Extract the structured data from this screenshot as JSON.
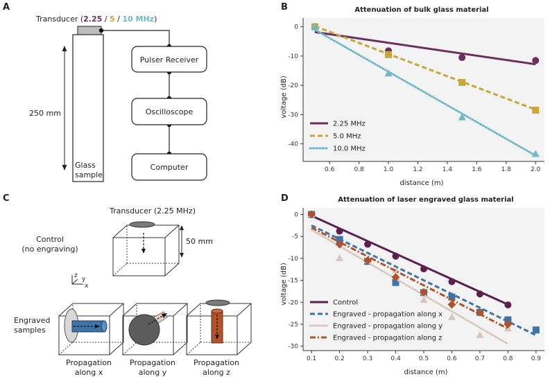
{
  "panels": {
    "a": "A",
    "b": "B",
    "c": "C",
    "d": "D"
  },
  "colors": {
    "c225": "#6b2f5f",
    "c5": "#c9a53a",
    "c10": "#6fb8cc",
    "control": "#5a1f4e",
    "ex": "#3e73a8",
    "ey": "#d9c6bc",
    "ez": "#b2522a"
  },
  "diagram_a": {
    "transducer_prefix": "Transducer (",
    "freq1": "2.25",
    "sep1": " / ",
    "freq2": "5",
    "sep2": " / ",
    "freq3": "10 MHz",
    "transducer_suffix": ")",
    "length": "250 mm",
    "glass1": "Glass",
    "glass2": "sample",
    "pulser": "Pulser Receiver",
    "oscilloscope": "Oscilloscope",
    "computer": "Computer"
  },
  "diagram_c": {
    "transducer": "Transducer (2.25 MHz)",
    "control1": "Control",
    "control2": "(no engraving)",
    "size": "50 mm",
    "axis_z": "z",
    "axis_y": "y",
    "axis_x": "x",
    "engraved1": "Engraved",
    "engraved2": "samples",
    "propagation": "Propagation",
    "along_x": "along x",
    "along_y": "along y",
    "along_z": "along z"
  },
  "chart_data": [
    {
      "type": "scatter",
      "title": "Attenuation of bulk glass material",
      "xlabel": "distance (m)",
      "ylabel": "voltage (dB)",
      "xlim": [
        0.42,
        2.06
      ],
      "ylim": [
        -46,
        3
      ],
      "xticks": [
        0.6,
        0.8,
        1.0,
        1.2,
        1.4,
        1.6,
        1.8,
        2.0
      ],
      "xtick_labels": [
        "0.6",
        "0.8",
        "1.0",
        "1.2",
        "1.4",
        "1.6",
        "1.8",
        "2.0"
      ],
      "yticks": [
        0,
        -10,
        -20,
        -30,
        -40
      ],
      "ytick_labels": [
        "0",
        "-10",
        "-20",
        "-30",
        "-40"
      ],
      "legend_position": "bottom-left",
      "series": [
        {
          "name": "2.25 MHz",
          "marker": "circle",
          "dash": "solid",
          "color": "#6b2f5f",
          "points": {
            "x": [
              0.5,
              1.0,
              1.5,
              2.0
            ],
            "y": [
              0,
              -8.2,
              -10.5,
              -11.5
            ]
          },
          "fit": {
            "x": [
              0.5,
              2.0
            ],
            "y": [
              -1.8,
              -12.8
            ]
          }
        },
        {
          "name": "5.0 MHz",
          "marker": "square",
          "dash": "dashed",
          "color": "#c9a53a",
          "points": {
            "x": [
              0.5,
              1.0,
              1.5,
              2.0
            ],
            "y": [
              0,
              -9.5,
              -19,
              -28.5
            ]
          },
          "fit": {
            "x": [
              0.5,
              2.0
            ],
            "y": [
              0.2,
              -28.3
            ]
          }
        },
        {
          "name": "10.0 MHz",
          "marker": "triangle",
          "dash": "dotted",
          "color": "#6fb8cc",
          "points": {
            "x": [
              0.5,
              1.0,
              1.5,
              2.0
            ],
            "y": [
              0,
              -16,
              -31,
              -43.5
            ]
          },
          "fit": {
            "x": [
              0.5,
              2.0
            ],
            "y": [
              -1,
              -44
            ]
          }
        }
      ]
    },
    {
      "type": "scatter",
      "title": "Attenuation of laser engraved glass material",
      "xlabel": "distance (m)",
      "ylabel": "voltage (dB)",
      "xlim": [
        0.07,
        0.93
      ],
      "ylim": [
        -31,
        1.5
      ],
      "xticks": [
        0.1,
        0.2,
        0.3,
        0.4,
        0.5,
        0.6,
        0.7,
        0.8,
        0.9
      ],
      "xtick_labels": [
        "0.1",
        "0.2",
        "0.3",
        "0.4",
        "0.5",
        "0.6",
        "0.7",
        "0.8",
        "0.9"
      ],
      "yticks": [
        0,
        -5,
        -10,
        -15,
        -20,
        -25,
        -30
      ],
      "ytick_labels": [
        "0",
        "-5",
        "-10",
        "-15",
        "-20",
        "-25",
        "-30"
      ],
      "legend_position": "bottom-left",
      "series": [
        {
          "name": "Control",
          "marker": "circle",
          "dash": "solid",
          "color": "#5a1f4e",
          "points": {
            "x": [
              0.1,
              0.2,
              0.3,
              0.4,
              0.5,
              0.6,
              0.7,
              0.8
            ],
            "y": [
              0,
              -3.8,
              -6.8,
              -9.5,
              -12.4,
              -15.3,
              -18.1,
              -20.6
            ]
          },
          "fit": {
            "x": [
              0.1,
              0.8
            ],
            "y": [
              -0.3,
              -20.5
            ]
          }
        },
        {
          "name": "Engraved - propagation along x",
          "marker": "square",
          "dash": "dashed",
          "color": "#3e73a8",
          "points": {
            "x": [
              0.1,
              0.2,
              0.3,
              0.4,
              0.5,
              0.6,
              0.7,
              0.8,
              0.9
            ],
            "y": [
              0,
              -5.7,
              -10.7,
              -15.5,
              -17.8,
              -18.8,
              -22.3,
              -24,
              -26.3
            ]
          },
          "fit": {
            "x": [
              0.1,
              0.9
            ],
            "y": [
              -2.5,
              -27.5
            ]
          }
        },
        {
          "name": "Engraved - propagation along y",
          "marker": "triangle",
          "dash": "dotted",
          "color": "#d9c6bc",
          "points": {
            "x": [
              0.1,
              0.2,
              0.3,
              0.4,
              0.5,
              0.6,
              0.7,
              0.8
            ],
            "y": [
              0,
              -10,
              -10.5,
              -12.8,
              -19.5,
              -23.4,
              -27.5,
              -26
            ]
          },
          "fit": {
            "x": [
              0.1,
              0.8
            ],
            "y": [
              -3.5,
              -29.5
            ]
          }
        },
        {
          "name": "Engraved - propagation along z",
          "marker": "diamond",
          "dash": "dashdot",
          "color": "#b2522a",
          "points": {
            "x": [
              0.1,
              0.2,
              0.3,
              0.4,
              0.5,
              0.6,
              0.7,
              0.8
            ],
            "y": [
              0,
              -6.8,
              -10.5,
              -14.3,
              -17.7,
              -20.5,
              -22.3,
              -25
            ]
          },
          "fit": {
            "x": [
              0.1,
              0.8
            ],
            "y": [
              -3,
              -26
            ]
          }
        }
      ]
    }
  ]
}
